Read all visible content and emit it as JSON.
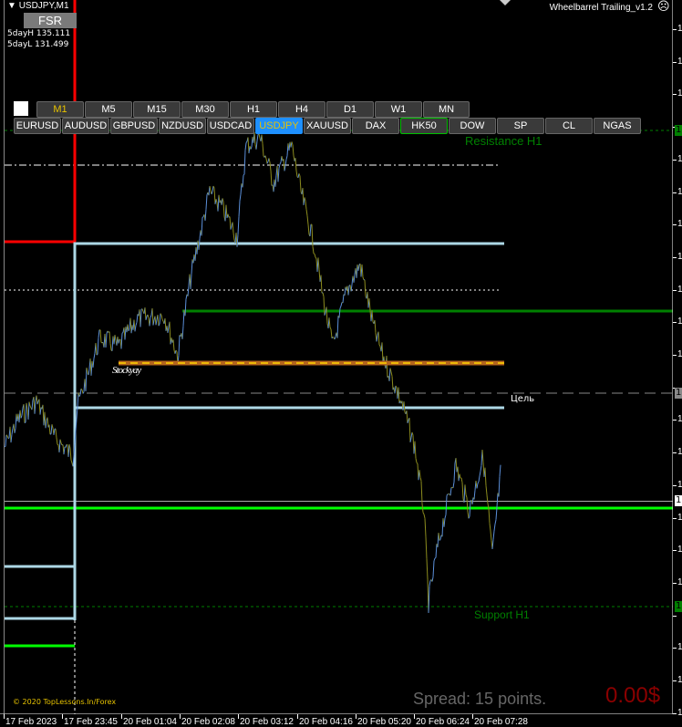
{
  "header": {
    "symbol": "USDJPY,M1",
    "fsr_label": "FSR",
    "five_day_high": "5dayH 135.111",
    "five_day_low": "5dayL 131.499",
    "indicator": "Wheelbarrel Trailing_v1.2"
  },
  "timeframes": [
    {
      "label": "M1",
      "active": true
    },
    {
      "label": "M5"
    },
    {
      "label": "M15"
    },
    {
      "label": "M30"
    },
    {
      "label": "H1"
    },
    {
      "label": "H4"
    },
    {
      "label": "D1"
    },
    {
      "label": "W1"
    },
    {
      "label": "MN"
    }
  ],
  "symbols": [
    {
      "label": "EURUSD"
    },
    {
      "label": "AUDUSD"
    },
    {
      "label": "GBPUSD"
    },
    {
      "label": "NZDUSD"
    },
    {
      "label": "USDCAD"
    },
    {
      "label": "USDJPY",
      "active": true
    },
    {
      "label": "XAUUSD"
    },
    {
      "label": "DAX"
    },
    {
      "label": "HK50",
      "highlight": true
    },
    {
      "label": "DOW"
    },
    {
      "label": "SP"
    },
    {
      "label": "CL"
    },
    {
      "label": "NGAS"
    }
  ],
  "chart": {
    "resistance_label": "Resistance H1",
    "support_label": "Support H1",
    "target_label": "Цель",
    "order_label": "Stockyay",
    "copyright": "© 2020 TopLessons.In/Forex",
    "spread": "Spread: 15 points.",
    "profit": "0.00$"
  },
  "time_axis": [
    "17 Feb 2023",
    "17 Feb 23:45",
    "20 Feb 01:04",
    "20 Feb 02:08",
    "20 Feb 03:12",
    "20 Feb 04:16",
    "20 Feb 05:20",
    "20 Feb 06:24",
    "20 Feb 07:28"
  ],
  "price_axis_label": "1",
  "colors": {
    "bull": "#5b8fd9",
    "bear": "#8c8c1e",
    "resistance": "#008000",
    "support_green": "#00ff00",
    "box": "#add8e6",
    "red": "#ff0000",
    "active_button": "#1e90ff",
    "profit": "#8b0000"
  }
}
